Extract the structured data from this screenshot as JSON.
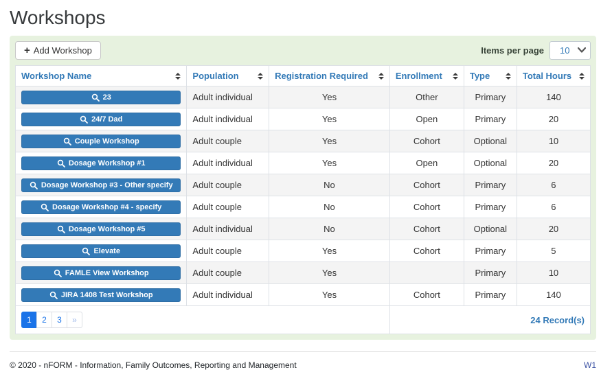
{
  "page": {
    "title": "Workshops"
  },
  "toolbar": {
    "add_button_label": "Add Workshop",
    "plus_glyph": "+",
    "items_per_page_label": "Items per page",
    "items_per_page_value": "10"
  },
  "table": {
    "columns": [
      {
        "label": "Workshop Name"
      },
      {
        "label": "Population"
      },
      {
        "label": "Registration Required"
      },
      {
        "label": "Enrollment"
      },
      {
        "label": "Type"
      },
      {
        "label": "Total Hours"
      }
    ],
    "rows": [
      {
        "name": "23",
        "population": "Adult individual",
        "registration_required": "Yes",
        "enrollment": "Other",
        "type": "Primary",
        "total_hours": "140"
      },
      {
        "name": "24/7 Dad",
        "population": "Adult individual",
        "registration_required": "Yes",
        "enrollment": "Open",
        "type": "Primary",
        "total_hours": "20"
      },
      {
        "name": "Couple Workshop",
        "population": "Adult couple",
        "registration_required": "Yes",
        "enrollment": "Cohort",
        "type": "Optional",
        "total_hours": "10"
      },
      {
        "name": "Dosage Workshop #1",
        "population": "Adult individual",
        "registration_required": "Yes",
        "enrollment": "Open",
        "type": "Optional",
        "total_hours": "20"
      },
      {
        "name": "Dosage Workshop #3 - Other specify",
        "population": "Adult couple",
        "registration_required": "No",
        "enrollment": "Cohort",
        "type": "Primary",
        "total_hours": "6"
      },
      {
        "name": "Dosage Workshop #4 - specify",
        "population": "Adult couple",
        "registration_required": "No",
        "enrollment": "Cohort",
        "type": "Primary",
        "total_hours": "6"
      },
      {
        "name": "Dosage Workshop #5",
        "population": "Adult individual",
        "registration_required": "No",
        "enrollment": "Cohort",
        "type": "Optional",
        "total_hours": "20"
      },
      {
        "name": "Elevate",
        "population": "Adult couple",
        "registration_required": "Yes",
        "enrollment": "Cohort",
        "type": "Primary",
        "total_hours": "5"
      },
      {
        "name": "FAMLE View Workshop",
        "population": "Adult couple",
        "registration_required": "Yes",
        "enrollment": "",
        "type": "Primary",
        "total_hours": "10"
      },
      {
        "name": "JIRA 1408 Test Workshop",
        "population": "Adult individual",
        "registration_required": "Yes",
        "enrollment": "Cohort",
        "type": "Primary",
        "total_hours": "140"
      }
    ]
  },
  "pagination": {
    "pages": [
      {
        "label": "1",
        "active": true,
        "muted": false
      },
      {
        "label": "2",
        "active": false,
        "muted": false
      },
      {
        "label": "3",
        "active": false,
        "muted": false
      },
      {
        "label": "»",
        "active": false,
        "muted": true
      }
    ],
    "records_text": "24 Record(s)"
  },
  "footer": {
    "copyright": "© 2020 - nFORM - Information, Family Outcomes, Reporting and Management",
    "version": "W1"
  },
  "colors": {
    "accent_blue": "#337ab7",
    "panel_green": "#e7f2df",
    "pagination_blue": "#1a73e8",
    "row_stripe": "#f4f4f4"
  }
}
